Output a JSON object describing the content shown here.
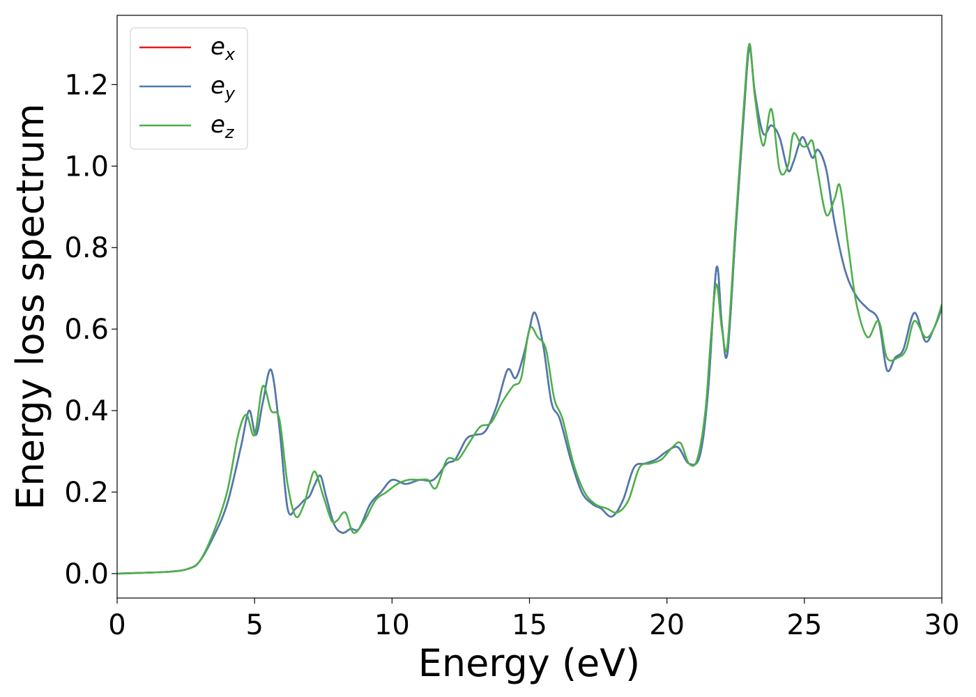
{
  "chart_data": {
    "type": "line",
    "title": "",
    "xlabel": "Energy (eV)",
    "ylabel": "Energy loss spectrum",
    "xlim": [
      0,
      30
    ],
    "ylim": [
      -0.06,
      1.37
    ],
    "xticks": [
      0,
      5,
      10,
      15,
      20,
      25,
      30
    ],
    "xtick_labels": [
      "0",
      "5",
      "10",
      "15",
      "20",
      "25",
      "30"
    ],
    "yticks": [
      0.0,
      0.2,
      0.4,
      0.6,
      0.8,
      1.0,
      1.2
    ],
    "ytick_labels": [
      "0.0",
      "0.2",
      "0.4",
      "0.6",
      "0.8",
      "1.0",
      "1.2"
    ],
    "grid": false,
    "legend_position": "top-left",
    "series": [
      {
        "name": "e_x",
        "label_base": "e",
        "label_sub": "x",
        "color": "#e41a1c",
        "x": [
          0,
          1,
          2,
          2.6,
          3.0,
          3.5,
          4.0,
          4.5,
          4.8,
          5.05,
          5.3,
          5.6,
          5.9,
          6.2,
          6.5,
          6.8,
          7.0,
          7.2,
          7.4,
          7.6,
          7.9,
          8.2,
          8.5,
          8.8,
          9.2,
          9.6,
          10.0,
          10.5,
          11.0,
          11.5,
          12.0,
          12.3,
          12.7,
          13.0,
          13.4,
          13.8,
          14.2,
          14.5,
          14.8,
          15.0,
          15.2,
          15.5,
          15.8,
          16.1,
          16.5,
          16.9,
          17.3,
          17.6,
          18.0,
          18.4,
          18.8,
          19.2,
          19.6,
          20.0,
          20.4,
          20.8,
          21.2,
          21.5,
          21.8,
          22.0,
          22.2,
          22.5,
          22.8,
          23.0,
          23.2,
          23.5,
          23.8,
          24.1,
          24.4,
          24.6,
          24.9,
          25.1,
          25.3,
          25.5,
          25.8,
          26.1,
          26.5,
          26.9,
          27.3,
          27.7,
          28.0,
          28.3,
          28.6,
          29.0,
          29.4,
          29.7,
          30.0
        ],
        "values": [
          0.0,
          0.002,
          0.005,
          0.012,
          0.03,
          0.09,
          0.17,
          0.31,
          0.4,
          0.34,
          0.42,
          0.5,
          0.36,
          0.16,
          0.16,
          0.18,
          0.19,
          0.22,
          0.24,
          0.19,
          0.12,
          0.1,
          0.11,
          0.11,
          0.17,
          0.2,
          0.23,
          0.22,
          0.23,
          0.23,
          0.27,
          0.28,
          0.33,
          0.34,
          0.35,
          0.41,
          0.5,
          0.48,
          0.54,
          0.6,
          0.64,
          0.56,
          0.42,
          0.38,
          0.28,
          0.2,
          0.17,
          0.16,
          0.14,
          0.18,
          0.26,
          0.27,
          0.28,
          0.3,
          0.31,
          0.27,
          0.29,
          0.45,
          0.75,
          0.61,
          0.54,
          0.84,
          1.13,
          1.29,
          1.18,
          1.08,
          1.1,
          1.07,
          0.99,
          1.01,
          1.07,
          1.05,
          1.02,
          1.04,
          0.99,
          0.86,
          0.74,
          0.68,
          0.65,
          0.62,
          0.5,
          0.53,
          0.55,
          0.64,
          0.57,
          0.6,
          0.65
        ]
      },
      {
        "name": "e_y",
        "label_base": "e",
        "label_sub": "y",
        "color": "#4a7cb0",
        "x": [
          0,
          1,
          2,
          2.6,
          3.0,
          3.5,
          4.0,
          4.5,
          4.8,
          5.05,
          5.3,
          5.6,
          5.9,
          6.2,
          6.5,
          6.8,
          7.0,
          7.2,
          7.4,
          7.6,
          7.9,
          8.2,
          8.5,
          8.8,
          9.2,
          9.6,
          10.0,
          10.5,
          11.0,
          11.5,
          12.0,
          12.3,
          12.7,
          13.0,
          13.4,
          13.8,
          14.2,
          14.5,
          14.8,
          15.0,
          15.2,
          15.5,
          15.8,
          16.1,
          16.5,
          16.9,
          17.3,
          17.6,
          18.0,
          18.4,
          18.8,
          19.2,
          19.6,
          20.0,
          20.4,
          20.8,
          21.2,
          21.5,
          21.8,
          22.0,
          22.2,
          22.5,
          22.8,
          23.0,
          23.2,
          23.5,
          23.8,
          24.1,
          24.4,
          24.6,
          24.9,
          25.1,
          25.3,
          25.5,
          25.8,
          26.1,
          26.5,
          26.9,
          27.3,
          27.7,
          28.0,
          28.3,
          28.6,
          29.0,
          29.4,
          29.7,
          30.0
        ],
        "values": [
          0.0,
          0.002,
          0.005,
          0.012,
          0.03,
          0.09,
          0.17,
          0.31,
          0.4,
          0.34,
          0.42,
          0.5,
          0.36,
          0.16,
          0.16,
          0.18,
          0.19,
          0.22,
          0.24,
          0.19,
          0.12,
          0.1,
          0.11,
          0.11,
          0.17,
          0.2,
          0.23,
          0.22,
          0.23,
          0.23,
          0.27,
          0.28,
          0.33,
          0.34,
          0.35,
          0.41,
          0.5,
          0.48,
          0.54,
          0.6,
          0.64,
          0.56,
          0.42,
          0.38,
          0.28,
          0.2,
          0.17,
          0.16,
          0.14,
          0.18,
          0.26,
          0.27,
          0.28,
          0.3,
          0.31,
          0.27,
          0.29,
          0.45,
          0.75,
          0.61,
          0.54,
          0.84,
          1.13,
          1.29,
          1.18,
          1.08,
          1.1,
          1.07,
          0.99,
          1.01,
          1.07,
          1.05,
          1.02,
          1.04,
          0.99,
          0.86,
          0.74,
          0.68,
          0.65,
          0.62,
          0.5,
          0.53,
          0.55,
          0.64,
          0.57,
          0.6,
          0.65
        ]
      },
      {
        "name": "e_z",
        "label_base": "e",
        "label_sub": "z",
        "color": "#4daf4a",
        "x": [
          0,
          1,
          2,
          2.6,
          3.0,
          3.5,
          4.0,
          4.4,
          4.7,
          5.0,
          5.3,
          5.6,
          5.9,
          6.2,
          6.5,
          6.8,
          7.0,
          7.2,
          7.5,
          7.8,
          8.0,
          8.3,
          8.6,
          9.0,
          9.4,
          9.8,
          10.2,
          10.6,
          11.0,
          11.3,
          11.6,
          12.0,
          12.4,
          12.8,
          13.2,
          13.6,
          14.0,
          14.4,
          14.7,
          15.0,
          15.3,
          15.6,
          15.9,
          16.2,
          16.6,
          17.0,
          17.4,
          17.8,
          18.2,
          18.6,
          19.0,
          19.4,
          19.8,
          20.2,
          20.5,
          20.8,
          21.1,
          21.4,
          21.6,
          21.8,
          22.0,
          22.2,
          22.5,
          22.8,
          23.0,
          23.2,
          23.5,
          23.8,
          24.1,
          24.4,
          24.6,
          24.9,
          25.1,
          25.3,
          25.5,
          25.8,
          26.1,
          26.3,
          26.6,
          26.9,
          27.3,
          27.7,
          28.0,
          28.4,
          28.7,
          29.0,
          29.4,
          29.7,
          30.0
        ],
        "values": [
          0.0,
          0.002,
          0.005,
          0.012,
          0.03,
          0.1,
          0.2,
          0.34,
          0.39,
          0.34,
          0.46,
          0.4,
          0.38,
          0.22,
          0.14,
          0.17,
          0.22,
          0.25,
          0.19,
          0.13,
          0.13,
          0.15,
          0.1,
          0.13,
          0.18,
          0.2,
          0.22,
          0.23,
          0.23,
          0.23,
          0.21,
          0.28,
          0.28,
          0.32,
          0.36,
          0.37,
          0.42,
          0.46,
          0.48,
          0.6,
          0.58,
          0.55,
          0.43,
          0.38,
          0.27,
          0.2,
          0.17,
          0.16,
          0.15,
          0.18,
          0.26,
          0.27,
          0.28,
          0.31,
          0.32,
          0.27,
          0.28,
          0.4,
          0.58,
          0.71,
          0.6,
          0.56,
          0.86,
          1.15,
          1.3,
          1.17,
          1.05,
          1.14,
          0.99,
          1.0,
          1.08,
          1.05,
          1.05,
          1.06,
          0.98,
          0.88,
          0.92,
          0.95,
          0.8,
          0.66,
          0.58,
          0.62,
          0.53,
          0.53,
          0.55,
          0.62,
          0.58,
          0.6,
          0.66
        ]
      }
    ]
  }
}
